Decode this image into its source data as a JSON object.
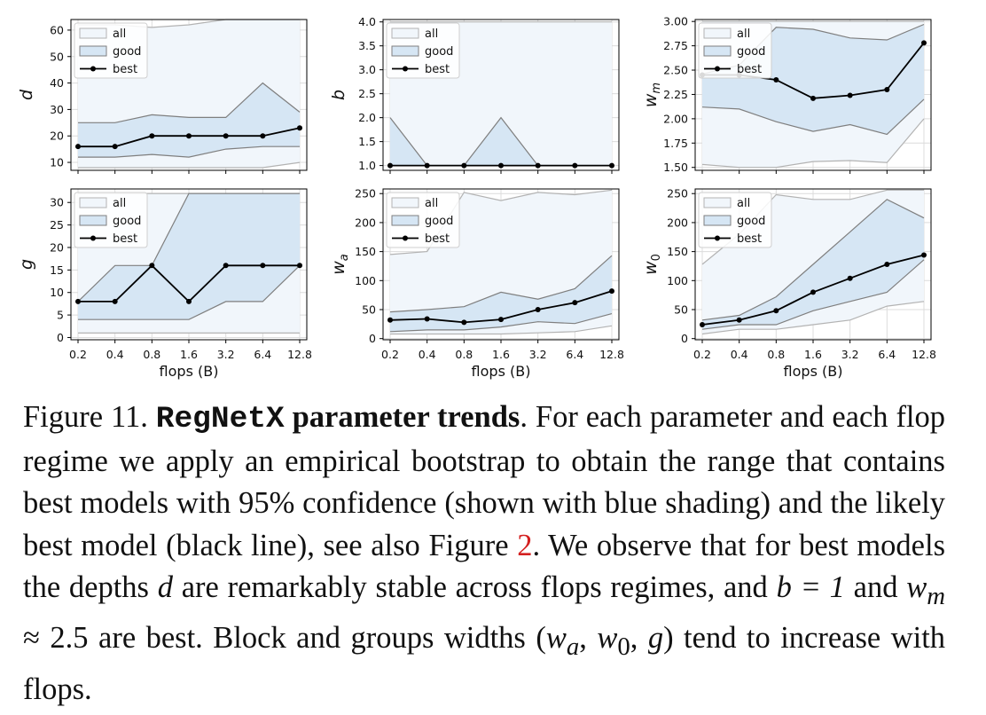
{
  "chart_data": [
    {
      "type": "line",
      "ylabel": "d",
      "categories": [
        "0.2",
        "0.4",
        "0.8",
        "1.6",
        "3.2",
        "6.4",
        "12.8"
      ],
      "ylim": [
        7,
        64
      ],
      "yticks": [
        "10",
        "20",
        "30",
        "40",
        "50",
        "60"
      ],
      "xticks_shown": false,
      "legend": [
        "all",
        "good",
        "best"
      ],
      "all_low": [
        8,
        8,
        8,
        8,
        8,
        8,
        10
      ],
      "all_high": [
        62,
        62,
        61,
        62,
        64,
        64,
        64
      ],
      "good_low": [
        12,
        12,
        13,
        12,
        15,
        16,
        16
      ],
      "good_high": [
        25,
        25,
        28,
        27,
        27,
        40,
        29
      ],
      "best": [
        16,
        16,
        20,
        20,
        20,
        20,
        23
      ]
    },
    {
      "type": "line",
      "ylabel": "b",
      "categories": [
        "0.2",
        "0.4",
        "0.8",
        "1.6",
        "3.2",
        "6.4",
        "12.8"
      ],
      "ylim": [
        0.9,
        4.05
      ],
      "yticks": [
        "1.0",
        "1.5",
        "2.0",
        "2.5",
        "3.0",
        "3.5",
        "4.0"
      ],
      "xticks_shown": false,
      "legend": [
        "all",
        "good",
        "best"
      ],
      "all_low": [
        1,
        1,
        1,
        1,
        1,
        1,
        1
      ],
      "all_high": [
        4,
        4,
        4,
        4,
        4,
        4,
        4
      ],
      "good_low": [
        1,
        1,
        1,
        1,
        1,
        1,
        1
      ],
      "good_high": [
        2,
        1,
        1,
        2,
        1,
        1,
        1
      ],
      "best": [
        1,
        1,
        1,
        1,
        1,
        1,
        1
      ]
    },
    {
      "type": "line",
      "ylabel": "w_m",
      "categories": [
        "0.2",
        "0.4",
        "0.8",
        "1.6",
        "3.2",
        "6.4",
        "12.8"
      ],
      "ylim": [
        1.47,
        3.02
      ],
      "yticks": [
        "1.50",
        "1.75",
        "2.00",
        "2.25",
        "2.50",
        "2.75",
        "3.00"
      ],
      "xticks_shown": false,
      "legend": [
        "all",
        "good",
        "best"
      ],
      "all_low": [
        1.53,
        1.5,
        1.5,
        1.56,
        1.57,
        1.55,
        2.0
      ],
      "all_high": [
        3.0,
        3.0,
        3.0,
        3.0,
        3.0,
        3.0,
        3.0
      ],
      "good_low": [
        2.12,
        2.1,
        1.97,
        1.87,
        1.94,
        1.84,
        2.2
      ],
      "good_high": [
        2.46,
        2.55,
        2.94,
        2.92,
        2.83,
        2.81,
        2.97
      ],
      "best": [
        2.45,
        2.45,
        2.4,
        2.21,
        2.24,
        2.3,
        2.78
      ]
    },
    {
      "type": "line",
      "ylabel": "g",
      "xlabel": "flops (B)",
      "categories": [
        "0.2",
        "0.4",
        "0.8",
        "1.6",
        "3.2",
        "6.4",
        "12.8"
      ],
      "ylim": [
        -0.5,
        33
      ],
      "yticks": [
        "0",
        "5",
        "10",
        "15",
        "20",
        "25",
        "30"
      ],
      "xticks_shown": true,
      "legend": [
        "all",
        "good",
        "best"
      ],
      "all_low": [
        1,
        1,
        1,
        1,
        1,
        1,
        1
      ],
      "all_high": [
        32,
        32,
        32,
        32,
        32,
        32,
        32
      ],
      "good_low": [
        4,
        4,
        4,
        4,
        8,
        8,
        16
      ],
      "good_high": [
        8,
        16,
        16,
        32,
        32,
        32,
        32
      ],
      "best": [
        8,
        8,
        16,
        8,
        16,
        16,
        16
      ]
    },
    {
      "type": "line",
      "ylabel": "w_a",
      "xlabel": "flops (B)",
      "categories": [
        "0.2",
        "0.4",
        "0.8",
        "1.6",
        "3.2",
        "6.4",
        "12.8"
      ],
      "ylim": [
        -2,
        258
      ],
      "yticks": [
        "0",
        "50",
        "100",
        "150",
        "200",
        "250"
      ],
      "xticks_shown": true,
      "legend": [
        "all",
        "good",
        "best"
      ],
      "all_low": [
        8,
        8,
        8,
        8,
        10,
        12,
        22
      ],
      "all_high": [
        145,
        150,
        252,
        238,
        252,
        248,
        256
      ],
      "good_low": [
        12,
        15,
        15,
        20,
        29,
        26,
        43
      ],
      "good_high": [
        46,
        50,
        55,
        80,
        68,
        86,
        143
      ],
      "best": [
        32,
        34,
        28,
        33,
        50,
        62,
        82
      ]
    },
    {
      "type": "line",
      "ylabel": "w_0",
      "xlabel": "flops (B)",
      "categories": [
        "0.2",
        "0.4",
        "0.8",
        "1.6",
        "3.2",
        "6.4",
        "12.8"
      ],
      "ylim": [
        -2,
        258
      ],
      "yticks": [
        "0",
        "50",
        "100",
        "150",
        "200",
        "250"
      ],
      "xticks_shown": true,
      "legend": [
        "all",
        "good",
        "best"
      ],
      "all_low": [
        8,
        16,
        16,
        24,
        32,
        56,
        64
      ],
      "all_high": [
        128,
        180,
        248,
        240,
        240,
        256,
        256
      ],
      "good_low": [
        16,
        24,
        24,
        48,
        64,
        80,
        136
      ],
      "good_high": [
        32,
        40,
        72,
        128,
        184,
        240,
        208
      ],
      "best": [
        24,
        32,
        48,
        80,
        104,
        128,
        144
      ]
    }
  ],
  "caption": {
    "label": "Figure 11.",
    "title_mono": "RegNetX",
    "title_rest": "parameter trends",
    "text_1": ". For each parameter and each flop regime we apply an empirical bootstrap to obtain the range that contains best models with 95% confidence (shown with blue shading) and the likely best model (black line), see also Figure ",
    "ref": "2",
    "text_2": ". We observe that for best models the depths ",
    "var_d": "d",
    "text_3": " are remarkably stable across flops regimes, and ",
    "eq_b": "b = 1",
    "text_4": " and ",
    "eq_wm": "w",
    "eq_wm_sub": "m",
    "eq_wm_rest": " ≈ 2.5",
    "text_5": " are best. Block and groups widths (",
    "var_wa": "w",
    "var_wa_sub": "a",
    "comma1": ", ",
    "var_w0": "w",
    "var_w0_sub": "0",
    "comma2": ", ",
    "var_g": "g",
    "text_6": ") tend to increase with flops."
  }
}
